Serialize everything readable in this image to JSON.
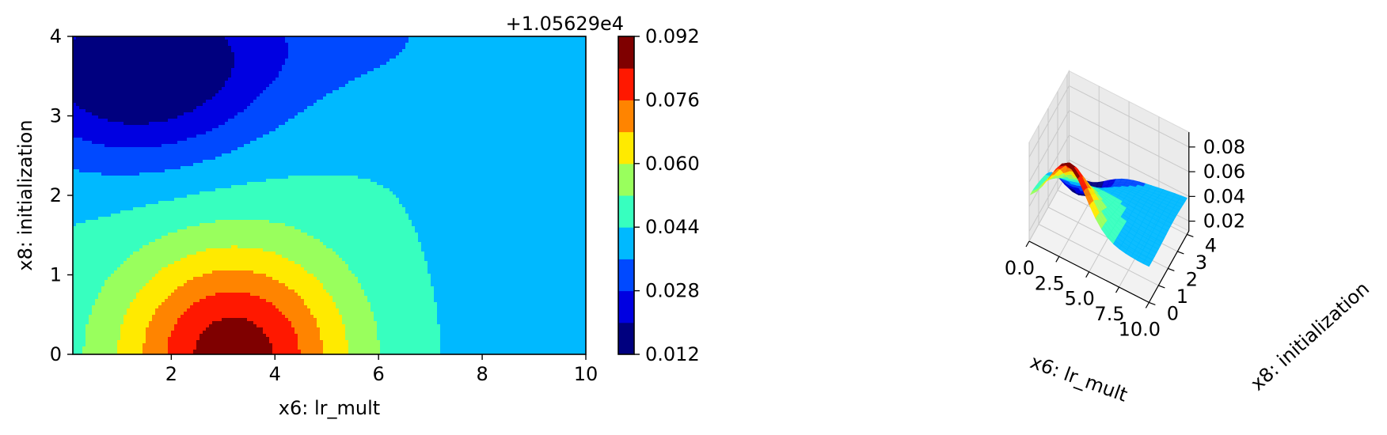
{
  "chart_data": [
    {
      "type": "contour",
      "colormap": "jet",
      "x_range": [
        0.1,
        10
      ],
      "y_range": [
        0,
        4
      ],
      "x_ticks": [
        "2",
        "4",
        "6",
        "8",
        "10"
      ],
      "y_ticks": [
        "0",
        "1",
        "2",
        "3",
        "4"
      ],
      "xlabel": "x6: lr_mult",
      "ylabel": "x8: initialization",
      "levels": [
        0.012,
        0.02,
        0.028,
        0.036,
        0.044,
        0.052,
        0.06,
        0.068,
        0.076,
        0.084,
        0.092
      ],
      "colorbar": {
        "offset_label": "+1.05629e4",
        "tick_labels": [
          "0.012",
          "0.028",
          "0.044",
          "0.060",
          "0.076",
          "0.092"
        ],
        "colors": [
          "#00007f",
          "#0000e1",
          "#0049ff",
          "#00b9ff",
          "#37ffbf",
          "#99ff5d",
          "#ffea00",
          "#ff8400",
          "#ff1800",
          "#7f0000"
        ]
      },
      "model": {
        "base": 0.044,
        "bumps": [
          {
            "x": 3.2,
            "y": 0.0,
            "sx": 2.2,
            "sy": 1.35,
            "amp": 0.045
          },
          {
            "x": 1.3,
            "y": 3.45,
            "sx": 2.5,
            "sy": 1.1,
            "amp": -0.029
          },
          {
            "x": 4.0,
            "y": 4.0,
            "sx": 5.0,
            "sy": 0.9,
            "amp": -0.01
          },
          {
            "x": 9.5,
            "y": 0.3,
            "sx": 3.0,
            "sy": 2.2,
            "amp": -0.003
          }
        ]
      }
    },
    {
      "type": "surface3d",
      "colormap": "jet",
      "x_ticks": [
        "0.0",
        "2.5",
        "5.0",
        "7.5",
        "10.0"
      ],
      "y_ticks": [
        "0",
        "1",
        "2",
        "3",
        "4"
      ],
      "z_ticks": [
        "0.02",
        "0.04",
        "0.06",
        "0.08"
      ],
      "xlabel": "x6: lr_mult",
      "ylabel": "x8: initialization",
      "z_range": [
        0.012,
        0.092
      ]
    }
  ]
}
